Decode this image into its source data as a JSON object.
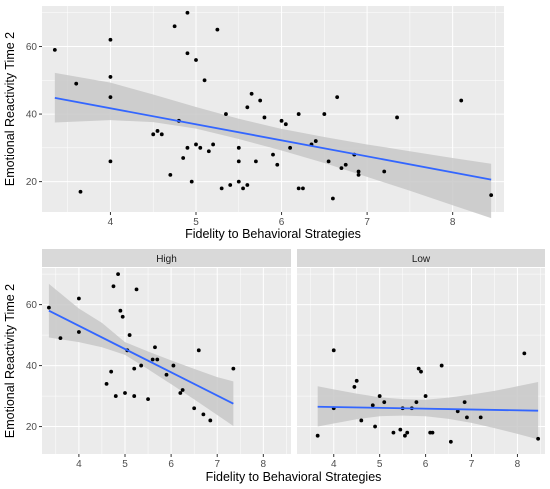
{
  "chart_data": [
    {
      "type": "scatter",
      "title": "",
      "xlabel": "Fidelity to Behavioral Strategies",
      "ylabel": "Emotional Reactivity Time 2",
      "xlim": [
        3.2,
        8.6
      ],
      "ylim": [
        11,
        72
      ],
      "x_ticks": [
        "4",
        "5",
        "6",
        "7",
        "8"
      ],
      "y_ticks": [
        "20",
        "40",
        "60"
      ],
      "grid": true,
      "points": [
        {
          "x": 3.35,
          "y": 59
        },
        {
          "x": 3.6,
          "y": 49
        },
        {
          "x": 3.65,
          "y": 17
        },
        {
          "x": 4.0,
          "y": 62
        },
        {
          "x": 4.0,
          "y": 51
        },
        {
          "x": 4.0,
          "y": 45
        },
        {
          "x": 4.0,
          "y": 26
        },
        {
          "x": 4.5,
          "y": 34
        },
        {
          "x": 4.55,
          "y": 35
        },
        {
          "x": 4.6,
          "y": 34
        },
        {
          "x": 4.7,
          "y": 22
        },
        {
          "x": 4.75,
          "y": 66
        },
        {
          "x": 4.8,
          "y": 38
        },
        {
          "x": 4.85,
          "y": 27
        },
        {
          "x": 4.9,
          "y": 70
        },
        {
          "x": 4.9,
          "y": 58
        },
        {
          "x": 4.9,
          "y": 30
        },
        {
          "x": 4.95,
          "y": 20
        },
        {
          "x": 5.0,
          "y": 56
        },
        {
          "x": 5.0,
          "y": 31
        },
        {
          "x": 5.05,
          "y": 30
        },
        {
          "x": 5.1,
          "y": 50
        },
        {
          "x": 5.15,
          "y": 29
        },
        {
          "x": 5.2,
          "y": 31
        },
        {
          "x": 5.25,
          "y": 65
        },
        {
          "x": 5.3,
          "y": 18
        },
        {
          "x": 5.35,
          "y": 40
        },
        {
          "x": 5.4,
          "y": 19
        },
        {
          "x": 5.5,
          "y": 30
        },
        {
          "x": 5.5,
          "y": 26
        },
        {
          "x": 5.5,
          "y": 20
        },
        {
          "x": 5.55,
          "y": 18
        },
        {
          "x": 5.6,
          "y": 42
        },
        {
          "x": 5.6,
          "y": 19
        },
        {
          "x": 5.65,
          "y": 46
        },
        {
          "x": 5.7,
          "y": 26
        },
        {
          "x": 5.75,
          "y": 44
        },
        {
          "x": 5.8,
          "y": 39
        },
        {
          "x": 5.9,
          "y": 28
        },
        {
          "x": 5.95,
          "y": 25
        },
        {
          "x": 6.0,
          "y": 38
        },
        {
          "x": 6.05,
          "y": 37
        },
        {
          "x": 6.1,
          "y": 30
        },
        {
          "x": 6.2,
          "y": 40
        },
        {
          "x": 6.2,
          "y": 18
        },
        {
          "x": 6.25,
          "y": 18
        },
        {
          "x": 6.35,
          "y": 31
        },
        {
          "x": 6.4,
          "y": 32
        },
        {
          "x": 6.5,
          "y": 40
        },
        {
          "x": 6.55,
          "y": 26
        },
        {
          "x": 6.6,
          "y": 15
        },
        {
          "x": 6.65,
          "y": 45
        },
        {
          "x": 6.7,
          "y": 24
        },
        {
          "x": 6.75,
          "y": 25
        },
        {
          "x": 6.85,
          "y": 28
        },
        {
          "x": 6.9,
          "y": 23
        },
        {
          "x": 6.9,
          "y": 22
        },
        {
          "x": 7.2,
          "y": 23
        },
        {
          "x": 7.35,
          "y": 39
        },
        {
          "x": 8.1,
          "y": 44
        },
        {
          "x": 8.45,
          "y": 16
        }
      ],
      "fit": {
        "x": [
          3.35,
          8.45
        ],
        "y": [
          44.8,
          20.6
        ]
      },
      "ribbon": [
        {
          "x": 3.35,
          "lo": 37.5,
          "hi": 52.2
        },
        {
          "x": 4.0,
          "lo": 38.2,
          "hi": 49.3
        },
        {
          "x": 4.5,
          "lo": 37.6,
          "hi": 45.8
        },
        {
          "x": 5.0,
          "lo": 35.7,
          "hi": 42.1
        },
        {
          "x": 5.5,
          "lo": 32.6,
          "hi": 38.6
        },
        {
          "x": 6.0,
          "lo": 29.2,
          "hi": 35.6
        },
        {
          "x": 6.5,
          "lo": 25.5,
          "hi": 33.2
        },
        {
          "x": 7.0,
          "lo": 21.4,
          "hi": 31.0
        },
        {
          "x": 7.5,
          "lo": 17.3,
          "hi": 29.0
        },
        {
          "x": 8.0,
          "lo": 13.0,
          "hi": 27.0
        },
        {
          "x": 8.45,
          "lo": 9.2,
          "hi": 25.3
        }
      ]
    },
    {
      "type": "scatter",
      "title": "",
      "xlabel": "Fidelity to Behavioral Strategies",
      "ylabel": "Emotional Reactivity Time 2",
      "xlim": [
        3.2,
        8.6
      ],
      "ylim": [
        11,
        72
      ],
      "x_ticks": [
        "4",
        "5",
        "6",
        "7",
        "8"
      ],
      "y_ticks": [
        "20",
        "40",
        "60"
      ],
      "grid": true,
      "facets": [
        {
          "label": "High",
          "points": [
            {
              "x": 3.35,
              "y": 59
            },
            {
              "x": 3.6,
              "y": 49
            },
            {
              "x": 4.0,
              "y": 62
            },
            {
              "x": 4.0,
              "y": 51
            },
            {
              "x": 4.6,
              "y": 34
            },
            {
              "x": 4.7,
              "y": 38
            },
            {
              "x": 4.75,
              "y": 66
            },
            {
              "x": 4.8,
              "y": 30
            },
            {
              "x": 4.85,
              "y": 70
            },
            {
              "x": 4.9,
              "y": 58
            },
            {
              "x": 4.95,
              "y": 56
            },
            {
              "x": 5.0,
              "y": 31
            },
            {
              "x": 5.05,
              "y": 45
            },
            {
              "x": 5.1,
              "y": 50
            },
            {
              "x": 5.2,
              "y": 39
            },
            {
              "x": 5.2,
              "y": 30
            },
            {
              "x": 5.25,
              "y": 65
            },
            {
              "x": 5.35,
              "y": 40
            },
            {
              "x": 5.5,
              "y": 29
            },
            {
              "x": 5.6,
              "y": 42
            },
            {
              "x": 5.65,
              "y": 46
            },
            {
              "x": 5.7,
              "y": 42
            },
            {
              "x": 5.9,
              "y": 37
            },
            {
              "x": 6.05,
              "y": 40
            },
            {
              "x": 6.2,
              "y": 31
            },
            {
              "x": 6.25,
              "y": 32
            },
            {
              "x": 6.5,
              "y": 26
            },
            {
              "x": 6.6,
              "y": 45
            },
            {
              "x": 6.7,
              "y": 24
            },
            {
              "x": 6.85,
              "y": 22
            },
            {
              "x": 7.35,
              "y": 39
            }
          ],
          "fit": {
            "x": [
              3.35,
              7.35
            ],
            "y": [
              58.0,
              27.5
            ]
          },
          "ribbon": [
            {
              "x": 3.35,
              "lo": 49.2,
              "hi": 66.8
            },
            {
              "x": 4.0,
              "lo": 47.7,
              "hi": 58.7
            },
            {
              "x": 4.5,
              "lo": 46.0,
              "hi": 54.0
            },
            {
              "x": 5.0,
              "lo": 43.5,
              "hi": 47.7
            },
            {
              "x": 5.5,
              "lo": 38.8,
              "hi": 44.6
            },
            {
              "x": 6.0,
              "lo": 33.9,
              "hi": 41.7
            },
            {
              "x": 6.5,
              "lo": 28.9,
              "hi": 38.9
            },
            {
              "x": 7.0,
              "lo": 23.8,
              "hi": 36.2
            },
            {
              "x": 7.35,
              "lo": 20.2,
              "hi": 34.8
            }
          ]
        },
        {
          "label": "Low",
          "points": [
            {
              "x": 3.65,
              "y": 17
            },
            {
              "x": 4.0,
              "y": 45
            },
            {
              "x": 4.0,
              "y": 26
            },
            {
              "x": 4.45,
              "y": 33
            },
            {
              "x": 4.5,
              "y": 35
            },
            {
              "x": 4.6,
              "y": 22
            },
            {
              "x": 4.85,
              "y": 27
            },
            {
              "x": 4.9,
              "y": 20
            },
            {
              "x": 5.0,
              "y": 30
            },
            {
              "x": 5.1,
              "y": 28
            },
            {
              "x": 5.3,
              "y": 18
            },
            {
              "x": 5.45,
              "y": 19
            },
            {
              "x": 5.5,
              "y": 26
            },
            {
              "x": 5.55,
              "y": 17
            },
            {
              "x": 5.6,
              "y": 18
            },
            {
              "x": 5.7,
              "y": 26
            },
            {
              "x": 5.8,
              "y": 28
            },
            {
              "x": 5.85,
              "y": 39
            },
            {
              "x": 5.9,
              "y": 38
            },
            {
              "x": 6.0,
              "y": 30
            },
            {
              "x": 6.1,
              "y": 18
            },
            {
              "x": 6.15,
              "y": 18
            },
            {
              "x": 6.35,
              "y": 40
            },
            {
              "x": 6.55,
              "y": 15
            },
            {
              "x": 6.7,
              "y": 25
            },
            {
              "x": 6.85,
              "y": 28
            },
            {
              "x": 6.9,
              "y": 23
            },
            {
              "x": 7.2,
              "y": 23
            },
            {
              "x": 8.15,
              "y": 44
            },
            {
              "x": 8.45,
              "y": 16
            }
          ],
          "fit": {
            "x": [
              3.65,
              8.45
            ],
            "y": [
              26.5,
              25.2
            ]
          },
          "ribbon": [
            {
              "x": 3.65,
              "lo": 20.0,
              "hi": 33.2
            },
            {
              "x": 4.0,
              "lo": 21.0,
              "hi": 32.2
            },
            {
              "x": 4.5,
              "lo": 22.4,
              "hi": 30.8
            },
            {
              "x": 5.0,
              "lo": 23.4,
              "hi": 29.6
            },
            {
              "x": 5.5,
              "lo": 23.6,
              "hi": 29.0
            },
            {
              "x": 6.0,
              "lo": 23.4,
              "hi": 28.8
            },
            {
              "x": 6.5,
              "lo": 22.5,
              "hi": 29.5
            },
            {
              "x": 7.0,
              "lo": 21.2,
              "hi": 30.5
            },
            {
              "x": 7.5,
              "lo": 19.5,
              "hi": 31.7
            },
            {
              "x": 8.0,
              "lo": 17.6,
              "hi": 33.2
            },
            {
              "x": 8.45,
              "lo": 15.8,
              "hi": 34.6
            }
          ]
        }
      ]
    }
  ],
  "colors": {
    "panel_background": "#ebebeb",
    "strip_background": "#d9d9d9",
    "points": "#000000",
    "fit_line": "#3366ff",
    "ribbon": "#c8c8c8"
  }
}
